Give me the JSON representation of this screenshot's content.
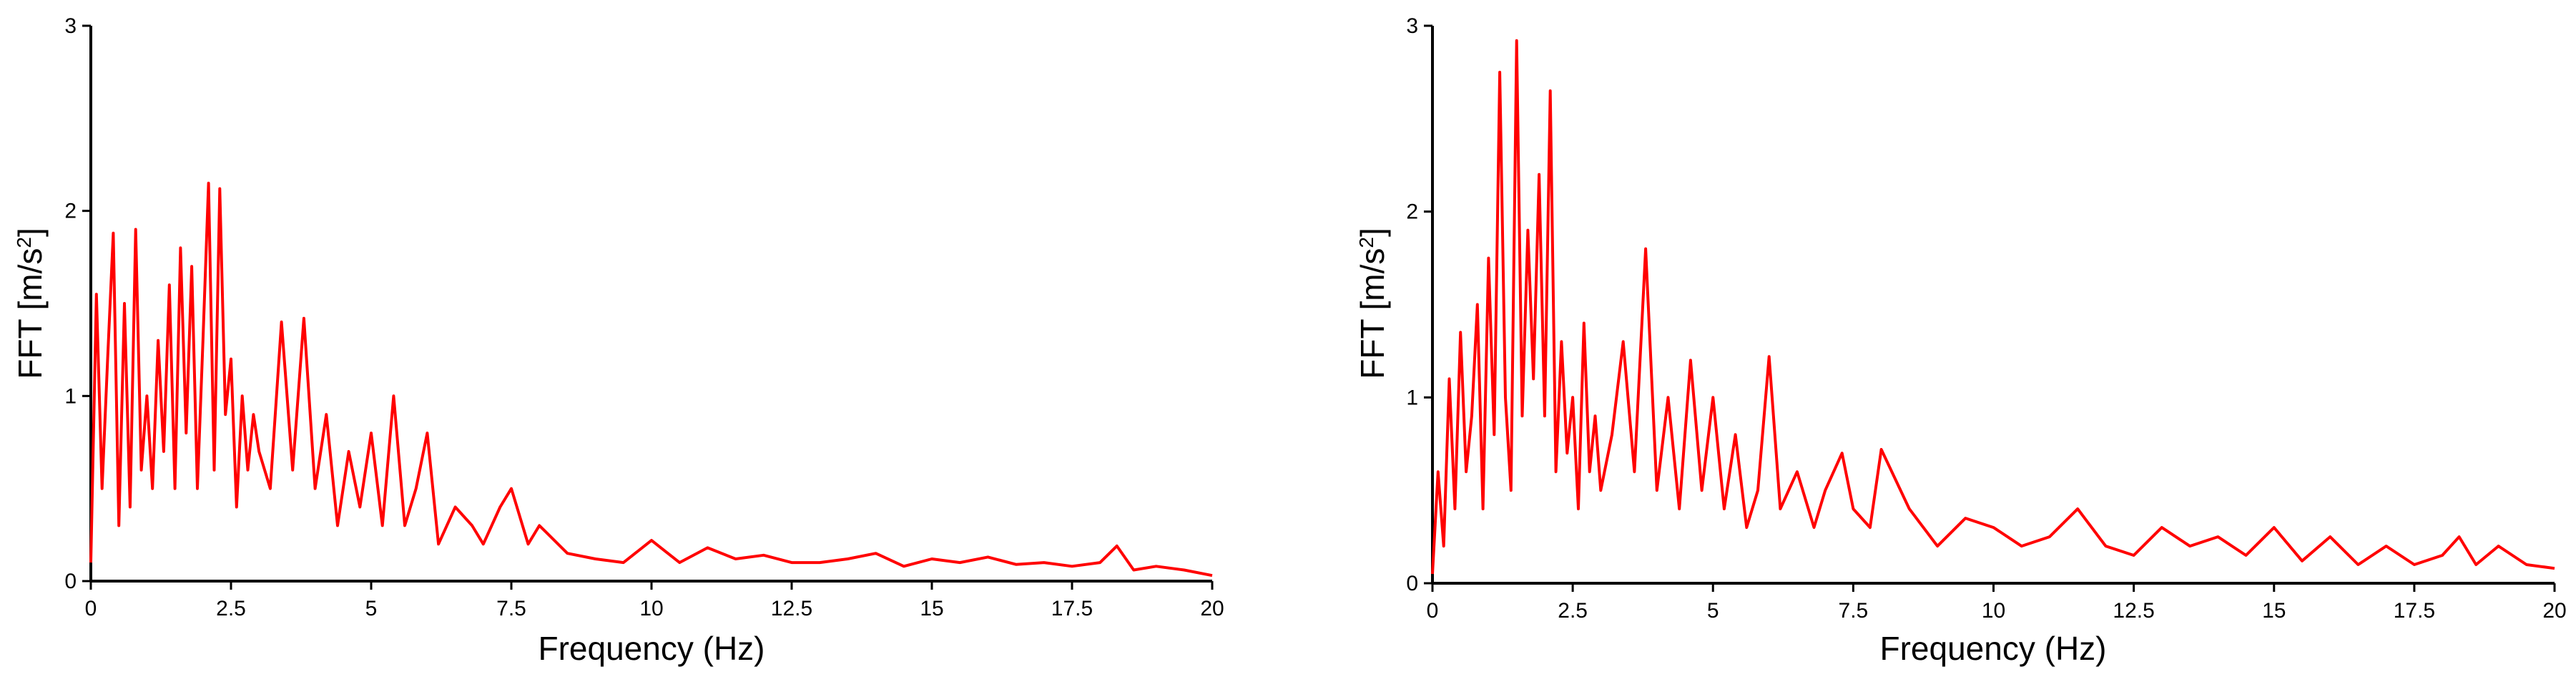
{
  "chart_data": [
    {
      "type": "line",
      "xlabel": "Frequency (Hz)",
      "ylabel": "FFT [m/s",
      "ylabel_superscript": "2",
      "ylabel_suffix": "]",
      "xlim": [
        0,
        20
      ],
      "ylim": [
        0,
        3
      ],
      "xticks": [
        0,
        2.5,
        5,
        7.5,
        10,
        12.5,
        15,
        17.5,
        20
      ],
      "xtick_labels": [
        "0",
        "2.5",
        "5",
        "7.5",
        "10",
        "12.5",
        "15",
        "17.5",
        "20"
      ],
      "yticks": [
        0,
        1,
        2,
        3
      ],
      "ytick_labels": [
        "0",
        "1",
        "2",
        "3"
      ],
      "grid": false,
      "line_color": "#ff0000",
      "series": [
        {
          "x": [
            0,
            0.1,
            0.2,
            0.3,
            0.4,
            0.5,
            0.6,
            0.7,
            0.8,
            0.9,
            1.0,
            1.1,
            1.2,
            1.3,
            1.4,
            1.5,
            1.6,
            1.7,
            1.8,
            1.9,
            2.0,
            2.1,
            2.2,
            2.3,
            2.4,
            2.5,
            2.6,
            2.7,
            2.8,
            2.9,
            3.0,
            3.2,
            3.4,
            3.6,
            3.8,
            4.0,
            4.2,
            4.4,
            4.6,
            4.8,
            5.0,
            5.2,
            5.4,
            5.6,
            5.8,
            6.0,
            6.2,
            6.5,
            6.8,
            7.0,
            7.3,
            7.5,
            7.8,
            8.0,
            8.5,
            9.0,
            9.5,
            10.0,
            10.5,
            11.0,
            11.5,
            12.0,
            12.5,
            13.0,
            13.5,
            14.0,
            14.5,
            15.0,
            15.5,
            16.0,
            16.5,
            17.0,
            17.5,
            18.0,
            18.3,
            18.6,
            19.0,
            19.5,
            20.0
          ],
          "values": [
            0.1,
            1.55,
            0.5,
            1.2,
            1.88,
            0.3,
            1.5,
            0.4,
            1.9,
            0.6,
            1.0,
            0.5,
            1.3,
            0.7,
            1.6,
            0.5,
            1.8,
            0.8,
            1.7,
            0.5,
            1.3,
            2.15,
            0.6,
            2.12,
            0.9,
            1.2,
            0.4,
            1.0,
            0.6,
            0.9,
            0.7,
            0.5,
            1.4,
            0.6,
            1.42,
            0.5,
            0.9,
            0.3,
            0.7,
            0.4,
            0.8,
            0.3,
            1.0,
            0.3,
            0.5,
            0.8,
            0.2,
            0.4,
            0.3,
            0.2,
            0.4,
            0.5,
            0.2,
            0.3,
            0.15,
            0.12,
            0.1,
            0.22,
            0.1,
            0.18,
            0.12,
            0.14,
            0.1,
            0.1,
            0.12,
            0.15,
            0.08,
            0.12,
            0.1,
            0.13,
            0.09,
            0.1,
            0.08,
            0.1,
            0.19,
            0.06,
            0.08,
            0.06,
            0.03
          ]
        }
      ]
    },
    {
      "type": "line",
      "xlabel": "Frequency (Hz)",
      "ylabel": "FFT [m/s",
      "ylabel_superscript": "2",
      "ylabel_suffix": "]",
      "xlim": [
        0,
        20
      ],
      "ylim": [
        0,
        3
      ],
      "xticks": [
        0,
        2.5,
        5,
        7.5,
        10,
        12.5,
        15,
        17.5,
        20
      ],
      "xtick_labels": [
        "0",
        "2.5",
        "5",
        "7.5",
        "10",
        "12.5",
        "15",
        "17.5",
        "20"
      ],
      "yticks": [
        0,
        1,
        2,
        3
      ],
      "ytick_labels": [
        "0",
        "1",
        "2",
        "3"
      ],
      "grid": false,
      "line_color": "#ff0000",
      "series": [
        {
          "x": [
            0,
            0.1,
            0.2,
            0.3,
            0.4,
            0.5,
            0.6,
            0.7,
            0.8,
            0.9,
            1.0,
            1.1,
            1.2,
            1.3,
            1.4,
            1.5,
            1.6,
            1.7,
            1.8,
            1.9,
            2.0,
            2.1,
            2.2,
            2.3,
            2.4,
            2.5,
            2.6,
            2.7,
            2.8,
            2.9,
            3.0,
            3.2,
            3.4,
            3.6,
            3.8,
            4.0,
            4.2,
            4.4,
            4.6,
            4.8,
            5.0,
            5.2,
            5.4,
            5.6,
            5.8,
            6.0,
            6.2,
            6.5,
            6.8,
            7.0,
            7.3,
            7.5,
            7.8,
            8.0,
            8.5,
            9.0,
            9.5,
            10.0,
            10.5,
            11.0,
            11.5,
            12.0,
            12.5,
            13.0,
            13.5,
            14.0,
            14.5,
            15.0,
            15.5,
            16.0,
            16.5,
            17.0,
            17.5,
            18.0,
            18.3,
            18.6,
            19.0,
            19.5,
            20.0
          ],
          "values": [
            0.05,
            0.6,
            0.2,
            1.1,
            0.4,
            1.35,
            0.6,
            0.9,
            1.5,
            0.4,
            1.75,
            0.8,
            2.75,
            1.0,
            0.5,
            2.92,
            0.9,
            1.9,
            1.1,
            2.2,
            0.9,
            2.65,
            0.6,
            1.3,
            0.7,
            1.0,
            0.4,
            1.4,
            0.6,
            0.9,
            0.5,
            0.8,
            1.3,
            0.6,
            1.8,
            0.5,
            1.0,
            0.4,
            1.2,
            0.5,
            1.0,
            0.4,
            0.8,
            0.3,
            0.5,
            1.22,
            0.4,
            0.6,
            0.3,
            0.5,
            0.7,
            0.4,
            0.3,
            0.72,
            0.4,
            0.2,
            0.35,
            0.3,
            0.2,
            0.25,
            0.4,
            0.2,
            0.15,
            0.3,
            0.2,
            0.25,
            0.15,
            0.3,
            0.12,
            0.25,
            0.1,
            0.2,
            0.1,
            0.15,
            0.25,
            0.1,
            0.2,
            0.1,
            0.08
          ]
        }
      ]
    }
  ]
}
